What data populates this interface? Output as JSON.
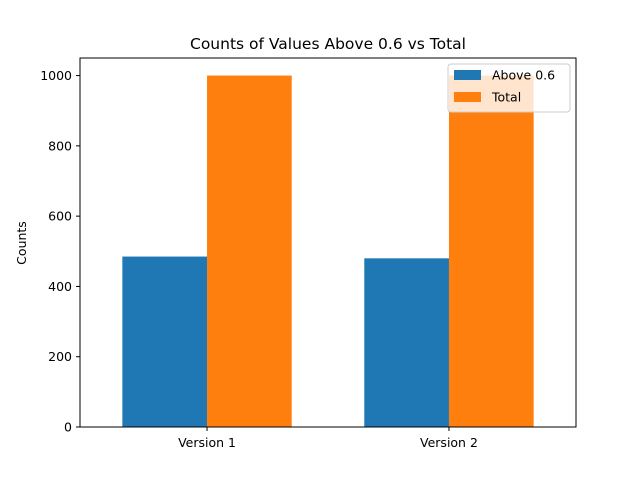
{
  "chart_data": {
    "type": "bar",
    "title": "Counts of Values Above 0.6 vs Total",
    "xlabel": "",
    "ylabel": "Counts",
    "categories": [
      "Version 1",
      "Version 2"
    ],
    "series": [
      {
        "name": "Above 0.6",
        "values": [
          485,
          480
        ],
        "color": "#1f77b4"
      },
      {
        "name": "Total",
        "values": [
          1000,
          1000
        ],
        "color": "#ff7f0e"
      }
    ],
    "ylim": [
      0,
      1050
    ],
    "yticks": [
      0,
      200,
      400,
      600,
      800,
      1000
    ],
    "grid": false,
    "legend_position": "top-right"
  }
}
